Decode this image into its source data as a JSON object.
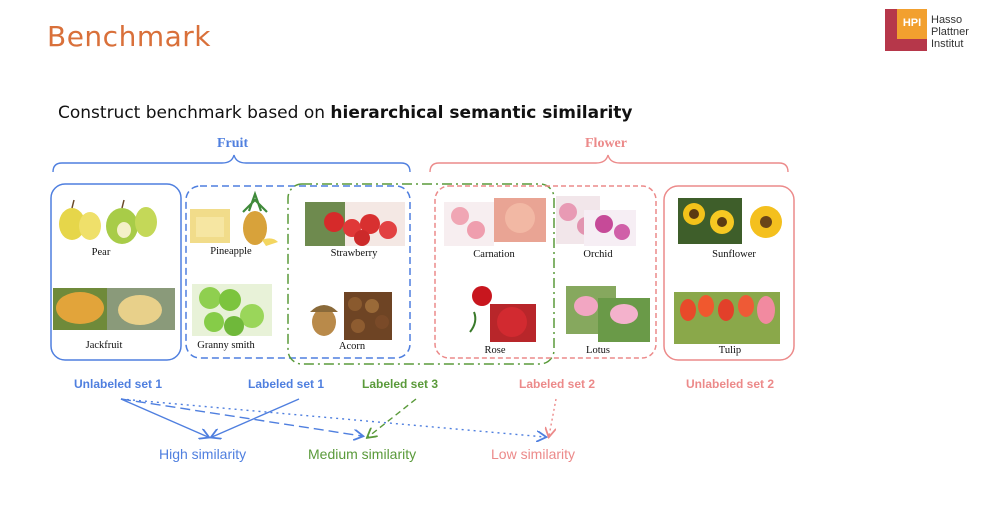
{
  "slide": {
    "title": "Benchmark",
    "subtitle_plain": "Construct benchmark based on ",
    "subtitle_bold": "hierarchical semantic similarity"
  },
  "logo": {
    "mark": "HPI",
    "line1": "Hasso",
    "line2": "Plattner",
    "line3": "Institut"
  },
  "categories": {
    "fruit": {
      "label": "Fruit",
      "color": "#4f7fdf"
    },
    "flower": {
      "label": "Flower",
      "color": "#ec8a8a"
    }
  },
  "items": {
    "pear": "Pear",
    "jackfruit": "Jackfruit",
    "pineapple": "Pineapple",
    "granny_smith": "Granny smith",
    "strawberry": "Strawberry",
    "acorn": "Acorn",
    "carnation": "Carnation",
    "rose": "Rose",
    "orchid": "Orchid",
    "lotus": "Lotus",
    "sunflower": "Sunflower",
    "tulip": "Tulip"
  },
  "sets": {
    "unlabeled_1": {
      "label": "Unlabeled set 1",
      "color": "#4f7fdf"
    },
    "labeled_1": {
      "label": "Labeled set 1",
      "color": "#4f7fdf"
    },
    "labeled_3": {
      "label": "Labeled set 3",
      "color": "#5a9a3a"
    },
    "labeled_2": {
      "label": "Labeled set 2",
      "color": "#ec8a8a"
    },
    "unlabeled_2": {
      "label": "Unlabeled set 2",
      "color": "#ec8a8a"
    }
  },
  "similarity": {
    "high": {
      "label": "High similarity",
      "color": "#4f7fdf"
    },
    "medium": {
      "label": "Medium similarity",
      "color": "#5a9a3a"
    },
    "low": {
      "label": "Low similarity",
      "color": "#ec8a8a"
    }
  },
  "brand_color": "#d9703a"
}
